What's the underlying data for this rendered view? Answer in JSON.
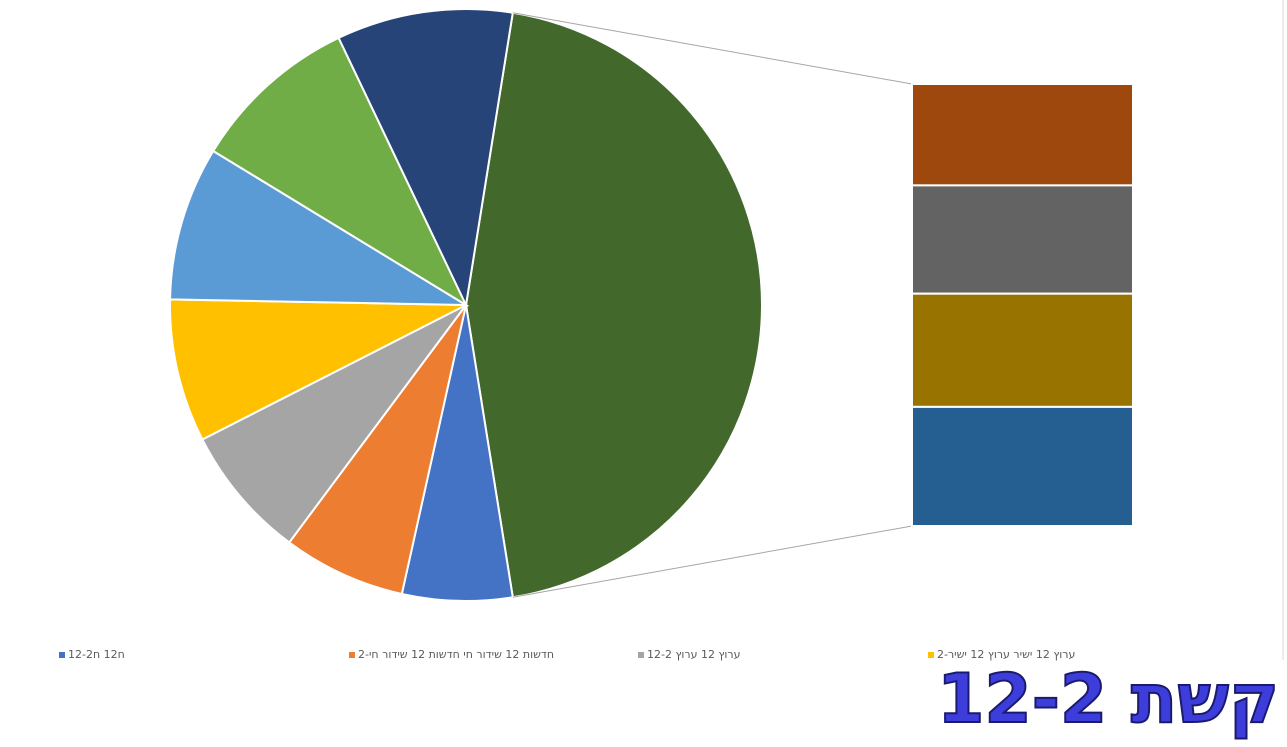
{
  "chart_data": {
    "type": "pie_of_bar",
    "categories": [
      "ח12 ח12-2",
      "חדשות 12 שידור חי חדשות 12 שידור חי-2",
      "ערוץ 12 ערוץ 12-2",
      "ערוץ 12 ישיר ערוץ 12 ישיר-2",
      null,
      null,
      null
    ],
    "values": [
      6.0,
      6.7,
      7.3,
      7.8,
      8.4,
      9.2,
      9.6
    ],
    "colors": [
      "#4472c4",
      "#ed7d31",
      "#a5a5a5",
      "#ffc000",
      "#5b9bd5",
      "#70ad47",
      "#264478"
    ],
    "other_color": "#43682b",
    "bar_values": [
      10.3,
      11.0,
      11.5,
      12.1
    ],
    "bar_colors": [
      "#9e480e",
      "#636363",
      "#997300",
      "#255e91"
    ]
  },
  "watermark": "קשת 12-2"
}
